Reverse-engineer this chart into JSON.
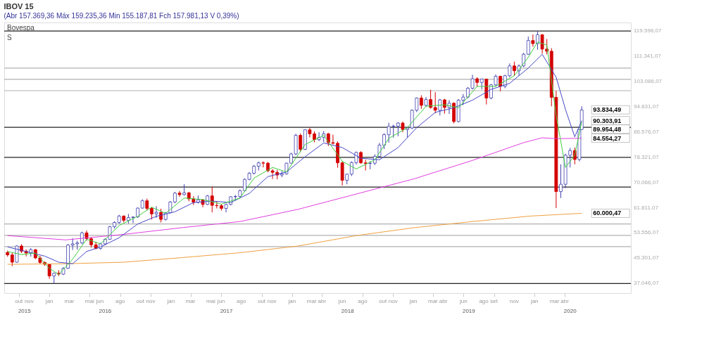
{
  "chart_data": {
    "type": "candlestick",
    "title": "IBOV 15",
    "subtitle": "(Abr 157.369,36 Máx 159.235,36 Min 155.187,81 Fch 157.981,13 V 0,39%)",
    "annotations": [
      "Bovespa",
      "S",
      {
        "text": "93.834,49",
        "x": "2020-06-05",
        "y": 93834.49
      },
      {
        "text": "90.303,91",
        "x": "2020-06-05",
        "y": 90303.91
      },
      {
        "text": "89.954,48",
        "x": "2020-06-05",
        "y": 89954.48
      },
      {
        "text": "84.554,27",
        "x": "2020-06-05",
        "y": 84554.27
      },
      {
        "text": "60.000,47",
        "x": "2020-06-05",
        "y": 60000.47
      }
    ],
    "xlim": [
      "2015-09-01",
      "2020-10-31"
    ],
    "x2lim": [
      "2015-09-01",
      "2020-10-31"
    ],
    "xticks": [
      {
        "value": "2015-10-15",
        "label": "out"
      },
      {
        "value": "2015-11-15",
        "label": "nov"
      },
      {
        "value": "2016-01-15",
        "label": "jan"
      },
      {
        "value": "2016-03-15",
        "label": "mar"
      },
      {
        "value": "2016-05-15",
        "label": "mai"
      },
      {
        "value": "2016-06-15",
        "label": "jun"
      },
      {
        "value": "2016-08-15",
        "label": "ago"
      },
      {
        "value": "2016-10-15",
        "label": "out"
      },
      {
        "value": "2016-11-15",
        "label": "nov"
      },
      {
        "value": "2017-01-15",
        "label": "jan"
      },
      {
        "value": "2017-03-15",
        "label": "mar"
      },
      {
        "value": "2017-05-15",
        "label": "mai"
      },
      {
        "value": "2017-06-15",
        "label": "jun"
      },
      {
        "value": "2017-08-15",
        "label": "ago"
      },
      {
        "value": "2017-10-15",
        "label": "out"
      },
      {
        "value": "2017-11-15",
        "label": "nov"
      },
      {
        "value": "2018-01-15",
        "label": "jan"
      },
      {
        "value": "2018-03-15",
        "label": "mar"
      },
      {
        "value": "2018-04-15",
        "label": "abr"
      },
      {
        "value": "2018-06-15",
        "label": "jun"
      },
      {
        "value": "2018-08-15",
        "label": "ago"
      },
      {
        "value": "2018-10-15",
        "label": "out"
      },
      {
        "value": "2018-11-15",
        "label": "nov"
      },
      {
        "value": "2019-01-15",
        "label": "jan"
      },
      {
        "value": "2019-03-15",
        "label": "mar"
      },
      {
        "value": "2019-04-15",
        "label": "abr"
      },
      {
        "value": "2019-06-15",
        "label": "jun"
      },
      {
        "value": "2019-08-15",
        "label": "ago"
      },
      {
        "value": "2019-09-15",
        "label": "set"
      },
      {
        "value": "2019-11-15",
        "label": "nov"
      },
      {
        "value": "2020-01-15",
        "label": "jan"
      },
      {
        "value": "2020-03-15",
        "label": "mar"
      },
      {
        "value": "2020-04-15",
        "label": "abr"
      }
    ],
    "x2ticks": [
      {
        "value": "2015-11-01",
        "label": "2015"
      },
      {
        "value": "2016-07-01",
        "label": "2016"
      },
      {
        "value": "2017-07-01",
        "label": "2017"
      },
      {
        "value": "2018-07-01",
        "label": "2018"
      },
      {
        "value": "2019-07-01",
        "label": "2019"
      },
      {
        "value": "2020-05-01",
        "label": "2020"
      }
    ],
    "ylim": [
      33900,
      122400
    ],
    "yticks": [
      {
        "value": 119596.07,
        "label": "119.596,07"
      },
      {
        "value": 111341.07,
        "label": "111.341,07"
      },
      {
        "value": 103086.07,
        "label": "103.086,07"
      },
      {
        "value": 94831.07,
        "label": "94.831,07"
      },
      {
        "value": 86576.07,
        "label": "86.576,07"
      },
      {
        "value": 78321.07,
        "label": "78.321,07"
      },
      {
        "value": 70066.07,
        "label": "70.066,07"
      },
      {
        "value": 61811.07,
        "label": "61.811,07"
      },
      {
        "value": 53556.07,
        "label": "53.556,07"
      },
      {
        "value": 45301.07,
        "label": "45.301,07"
      },
      {
        "value": 37046.07,
        "label": "37.046,07"
      }
    ],
    "ref_lines": [
      {
        "axis": "y",
        "value": 119596,
        "color": "#222222"
      },
      {
        "axis": "y",
        "value": 107500,
        "color": "#b0b0b0"
      },
      {
        "axis": "y",
        "value": 103800,
        "color": "#b0b0b0"
      },
      {
        "axis": "y",
        "value": 100100,
        "color": "#b0b0b0"
      },
      {
        "axis": "y",
        "value": 88100,
        "color": "#222222"
      },
      {
        "axis": "y",
        "value": 78300,
        "color": "#222222"
      },
      {
        "axis": "y",
        "value": 68600,
        "color": "#222222"
      },
      {
        "axis": "y",
        "value": 56500,
        "color": "#b0b0b0"
      },
      {
        "axis": "y",
        "value": 52800,
        "color": "#b0b0b0"
      },
      {
        "axis": "y",
        "value": 49100,
        "color": "#b0b0b0"
      },
      {
        "axis": "y",
        "value": 37046,
        "color": "#222222"
      }
    ],
    "series": [
      {
        "type": "line",
        "color": "#f0a040",
        "x": [
          "2015-09-11",
          "2016-03-04",
          "2016-08-26",
          "2017-02-17",
          "2017-08-11",
          "2018-02-02",
          "2018-07-27",
          "2019-01-18",
          "2019-07-12",
          "2020-01-03",
          "2020-06-05"
        ],
        "values": [
          43300,
          43500,
          44000,
          45500,
          47100,
          49300,
          52700,
          55300,
          57300,
          59100,
          60000
        ]
      },
      {
        "type": "line",
        "color": "#e040e0",
        "x": [
          "2015-09-11",
          "2016-03-04",
          "2016-08-26",
          "2017-02-17",
          "2017-08-11",
          "2018-02-02",
          "2018-07-27",
          "2019-01-18",
          "2019-07-12",
          "2019-12-13",
          "2020-02-07",
          "2020-03-20",
          "2020-06-05"
        ],
        "values": [
          52700,
          51300,
          53100,
          55300,
          57300,
          61300,
          66300,
          71300,
          77300,
          83100,
          84700,
          84400,
          84550
        ]
      },
      {
        "type": "line",
        "color": "#4848c8",
        "x": [
          "2015-09-11",
          "2015-11-06",
          "2016-01-01",
          "2016-02-12",
          "2016-03-25",
          "2016-05-06",
          "2016-06-17",
          "2016-08-12",
          "2016-10-07",
          "2016-12-02",
          "2017-01-27",
          "2017-03-24",
          "2017-05-19",
          "2017-07-14",
          "2017-09-08",
          "2017-11-03",
          "2017-12-29",
          "2018-02-23",
          "2018-04-20",
          "2018-06-15",
          "2018-08-10",
          "2018-10-05",
          "2018-11-30",
          "2019-01-25",
          "2019-03-22",
          "2019-05-17",
          "2019-07-12",
          "2019-09-06",
          "2019-11-01",
          "2019-12-27",
          "2020-02-07",
          "2020-03-20",
          "2020-04-17",
          "2020-05-15",
          "2020-06-05"
        ],
        "values": [
          49000,
          47500,
          46000,
          44000,
          43500,
          47500,
          49000,
          52000,
          56500,
          59000,
          60500,
          63500,
          64000,
          63500,
          66500,
          72000,
          73500,
          78500,
          83000,
          81500,
          78000,
          77500,
          81500,
          88000,
          93000,
          94500,
          97000,
          100500,
          102500,
          107500,
          112000,
          104500,
          94000,
          85000,
          90300
        ]
      },
      {
        "type": "line",
        "color": "#40d040",
        "x": [
          "2015-09-11",
          "2015-10-23",
          "2015-12-04",
          "2016-01-15",
          "2016-02-12",
          "2016-03-25",
          "2016-05-06",
          "2016-06-17",
          "2016-08-12",
          "2016-10-07",
          "2016-11-18",
          "2016-12-30",
          "2017-02-24",
          "2017-04-21",
          "2017-06-16",
          "2017-08-11",
          "2017-09-22",
          "2017-11-17",
          "2017-12-29",
          "2018-02-23",
          "2018-04-20",
          "2018-06-15",
          "2018-07-27",
          "2018-09-21",
          "2018-11-02",
          "2018-12-28",
          "2019-02-22",
          "2019-04-19",
          "2019-05-31",
          "2019-07-26",
          "2019-09-20",
          "2019-11-15",
          "2019-12-27",
          "2020-01-24",
          "2020-02-21",
          "2020-03-20",
          "2020-04-17",
          "2020-05-15",
          "2020-06-05"
        ],
        "values": [
          47500,
          46500,
          47000,
          42000,
          40000,
          45000,
          51500,
          50000,
          56000,
          59000,
          62000,
          60000,
          65000,
          64500,
          63000,
          65000,
          71500,
          75000,
          73500,
          82500,
          85500,
          77000,
          74500,
          77500,
          84500,
          88000,
          95000,
          95500,
          94500,
          101500,
          101500,
          105000,
          111000,
          116000,
          115000,
          92000,
          75000,
          79000,
          89950
        ]
      },
      {
        "x": [
          "2015-09-11",
          "2015-09-25",
          "2015-10-09",
          "2015-10-23",
          "2015-11-06",
          "2015-11-20",
          "2015-12-04",
          "2015-12-18",
          "2016-01-01",
          "2016-01-15",
          "2016-01-29",
          "2016-02-12",
          "2016-02-26",
          "2016-03-11",
          "2016-03-25",
          "2016-04-08",
          "2016-04-22",
          "2016-05-06",
          "2016-05-20",
          "2016-06-03",
          "2016-06-17",
          "2016-07-01",
          "2016-07-15",
          "2016-07-29",
          "2016-08-12",
          "2016-08-26",
          "2016-09-09",
          "2016-09-23",
          "2016-10-07",
          "2016-10-21",
          "2016-11-04",
          "2016-11-18",
          "2016-12-02",
          "2016-12-16",
          "2016-12-30",
          "2017-01-13",
          "2017-01-27",
          "2017-02-10",
          "2017-02-24",
          "2017-03-10",
          "2017-03-24",
          "2017-04-07",
          "2017-04-21",
          "2017-05-05",
          "2017-05-19",
          "2017-06-02",
          "2017-06-16",
          "2017-06-30",
          "2017-07-14",
          "2017-07-28",
          "2017-08-11",
          "2017-08-25",
          "2017-09-08",
          "2017-09-22",
          "2017-10-06",
          "2017-10-20",
          "2017-11-03",
          "2017-11-17",
          "2017-12-01",
          "2017-12-15",
          "2017-12-29",
          "2018-01-12",
          "2018-01-26",
          "2018-02-09",
          "2018-02-23",
          "2018-03-09",
          "2018-03-23",
          "2018-04-06",
          "2018-04-20",
          "2018-05-04",
          "2018-05-18",
          "2018-06-01",
          "2018-06-15",
          "2018-06-29",
          "2018-07-13",
          "2018-07-27",
          "2018-08-10",
          "2018-08-24",
          "2018-09-07",
          "2018-09-21",
          "2018-10-05",
          "2018-10-19",
          "2018-11-02",
          "2018-11-16",
          "2018-11-30",
          "2018-12-14",
          "2018-12-28",
          "2019-01-11",
          "2019-01-25",
          "2019-02-08",
          "2019-02-22",
          "2019-03-08",
          "2019-03-22",
          "2019-04-05",
          "2019-04-19",
          "2019-05-03",
          "2019-05-17",
          "2019-05-31",
          "2019-06-14",
          "2019-06-28",
          "2019-07-12",
          "2019-07-26",
          "2019-08-09",
          "2019-08-23",
          "2019-09-06",
          "2019-09-20",
          "2019-10-04",
          "2019-10-18",
          "2019-11-01",
          "2019-11-15",
          "2019-11-29",
          "2019-12-13",
          "2019-12-27",
          "2020-01-10",
          "2020-01-24",
          "2020-02-07",
          "2020-02-21",
          "2020-03-06",
          "2020-03-20",
          "2020-04-03",
          "2020-04-17",
          "2020-05-01",
          "2020-05-15",
          "2020-05-29",
          "2020-06-05"
        ],
        "ohlc": [
          [
            47200,
            47800,
            45800,
            46400
          ],
          [
            46400,
            47000,
            42700,
            44000
          ],
          [
            44000,
            49500,
            43800,
            49300
          ],
          [
            49300,
            49900,
            47000,
            47600
          ],
          [
            47600,
            48200,
            45900,
            47000
          ],
          [
            47000,
            48600,
            45800,
            48100
          ],
          [
            48100,
            48300,
            45000,
            45400
          ],
          [
            45400,
            46100,
            43500,
            43900
          ],
          [
            43900,
            44300,
            42800,
            43300
          ],
          [
            43300,
            43400,
            38600,
            39500
          ],
          [
            39500,
            40600,
            37046,
            40400
          ],
          [
            40400,
            41400,
            39500,
            40100
          ],
          [
            40100,
            42400,
            39800,
            42000
          ],
          [
            42000,
            50000,
            41800,
            49600
          ],
          [
            49600,
            51800,
            48000,
            50000
          ],
          [
            50000,
            51000,
            48100,
            50300
          ],
          [
            50300,
            54000,
            49900,
            53600
          ],
          [
            53600,
            54400,
            51000,
            51700
          ],
          [
            51700,
            52200,
            48800,
            49700
          ],
          [
            49700,
            50700,
            48200,
            48500
          ],
          [
            48500,
            50300,
            48100,
            50000
          ],
          [
            50000,
            51800,
            49600,
            51500
          ],
          [
            51500,
            55900,
            51300,
            55600
          ],
          [
            55600,
            57400,
            55000,
            57000
          ],
          [
            57000,
            59500,
            56600,
            59100
          ],
          [
            59100,
            59300,
            57000,
            57700
          ],
          [
            57700,
            59800,
            56700,
            58600
          ],
          [
            58600,
            59000,
            56800,
            58800
          ],
          [
            58800,
            61900,
            58500,
            61700
          ],
          [
            61700,
            64600,
            61500,
            64100
          ],
          [
            64100,
            64800,
            61000,
            61600
          ],
          [
            61600,
            62000,
            58000,
            59800
          ],
          [
            59800,
            62300,
            58500,
            60300
          ],
          [
            60300,
            61500,
            57000,
            58000
          ],
          [
            58000,
            60400,
            57600,
            60200
          ],
          [
            60200,
            64000,
            60000,
            63700
          ],
          [
            63700,
            67000,
            63300,
            66600
          ],
          [
            66600,
            67300,
            65400,
            66100
          ],
          [
            66100,
            69500,
            65800,
            66700
          ],
          [
            66700,
            67000,
            63900,
            64700
          ],
          [
            64700,
            65600,
            62700,
            63600
          ],
          [
            63600,
            65800,
            63200,
            64400
          ],
          [
            64400,
            64600,
            62000,
            62900
          ],
          [
            62900,
            66000,
            62700,
            65700
          ],
          [
            65700,
            68700,
            60300,
            62600
          ],
          [
            62600,
            64000,
            61600,
            62500
          ],
          [
            62500,
            63000,
            60900,
            61600
          ],
          [
            61600,
            63200,
            60300,
            62900
          ],
          [
            62900,
            65600,
            62600,
            65400
          ],
          [
            65400,
            66000,
            64200,
            65500
          ],
          [
            65500,
            67800,
            65000,
            67400
          ],
          [
            67400,
            71400,
            67100,
            71100
          ],
          [
            71100,
            73500,
            70800,
            73100
          ],
          [
            73100,
            75800,
            72700,
            75400
          ],
          [
            75400,
            76900,
            74000,
            76500
          ],
          [
            76500,
            77000,
            75000,
            76400
          ],
          [
            76400,
            76800,
            73400,
            73900
          ],
          [
            73900,
            74500,
            71200,
            73400
          ],
          [
            73400,
            74200,
            71100,
            72500
          ],
          [
            72500,
            73800,
            71800,
            72900
          ],
          [
            72900,
            76600,
            72600,
            76400
          ],
          [
            76400,
            79800,
            76200,
            79400
          ],
          [
            79400,
            86000,
            79000,
            85500
          ],
          [
            85500,
            86100,
            80000,
            80900
          ],
          [
            80900,
            87500,
            80700,
            87300
          ],
          [
            87300,
            88000,
            84800,
            86000
          ],
          [
            86000,
            86800,
            83200,
            84100
          ],
          [
            84100,
            86500,
            83600,
            84800
          ],
          [
            84800,
            86900,
            83300,
            86000
          ],
          [
            86000,
            86300,
            82000,
            83100
          ],
          [
            83100,
            85700,
            82500,
            82900
          ],
          [
            82900,
            83500,
            74900,
            76500
          ],
          [
            76500,
            77000,
            69100,
            70800
          ],
          [
            70800,
            73000,
            69500,
            72800
          ],
          [
            72800,
            77000,
            72200,
            76600
          ],
          [
            76600,
            80200,
            76000,
            79900
          ],
          [
            79900,
            80300,
            76200,
            76500
          ],
          [
            76500,
            77500,
            74000,
            76300
          ],
          [
            76300,
            77000,
            74400,
            76400
          ],
          [
            76400,
            79300,
            75800,
            78600
          ],
          [
            78600,
            83000,
            78000,
            82300
          ],
          [
            82300,
            86200,
            81000,
            85700
          ],
          [
            85700,
            89600,
            83100,
            88400
          ],
          [
            88400,
            89000,
            84700,
            88500
          ],
          [
            88500,
            89800,
            85200,
            89500
          ],
          [
            89500,
            90000,
            86500,
            87400
          ],
          [
            87400,
            88000,
            84800,
            87900
          ],
          [
            87900,
            94000,
            87500,
            93700
          ],
          [
            93700,
            97900,
            93100,
            97700
          ],
          [
            97700,
            98600,
            94200,
            95300
          ],
          [
            95300,
            98000,
            94800,
            97200
          ],
          [
            97200,
            100400,
            94200,
            94600
          ],
          [
            94600,
            99600,
            92700,
            93700
          ],
          [
            93700,
            97400,
            92000,
            97100
          ],
          [
            97100,
            97400,
            92600,
            94600
          ],
          [
            94600,
            97000,
            92500,
            96000
          ],
          [
            96000,
            96300,
            89400,
            90000
          ],
          [
            90000,
            97300,
            89700,
            97000
          ],
          [
            97000,
            99000,
            95400,
            98000
          ],
          [
            98000,
            101300,
            97600,
            100900
          ],
          [
            100900,
            105300,
            100500,
            104000
          ],
          [
            104000,
            104500,
            101400,
            102800
          ],
          [
            102800,
            104100,
            100500,
            103900
          ],
          [
            103900,
            104000,
            95600,
            97700
          ],
          [
            97700,
            102300,
            97300,
            102000
          ],
          [
            102000,
            105400,
            101500,
            104800
          ],
          [
            104800,
            105000,
            99900,
            101500
          ],
          [
            101500,
            105300,
            100900,
            105000
          ],
          [
            105000,
            109000,
            104500,
            108200
          ],
          [
            108200,
            109600,
            105000,
            106600
          ],
          [
            106600,
            108700,
            105000,
            108200
          ],
          [
            108200,
            112500,
            107800,
            112000
          ],
          [
            112000,
            117800,
            111800,
            116500
          ],
          [
            116500,
            118500,
            114500,
            115500
          ],
          [
            115500,
            119596,
            113500,
            118400
          ],
          [
            118400,
            118600,
            112200,
            113700
          ],
          [
            113700,
            117000,
            112000,
            113000
          ],
          [
            113000,
            114000,
            95000,
            97900
          ],
          [
            97900,
            100000,
            61700,
            67100
          ],
          [
            67100,
            76000,
            65000,
            69500
          ],
          [
            69500,
            79500,
            68200,
            79000
          ],
          [
            79000,
            81400,
            75000,
            80500
          ],
          [
            80500,
            81500,
            76000,
            77600
          ],
          [
            77600,
            87600,
            77000,
            87400
          ],
          [
            87400,
            95000,
            87300,
            93800
          ]
        ],
        "colors": [
          "#d40000",
          "#d40000",
          "#4040b0",
          "#d40000",
          "#d40000",
          "#4040b0",
          "#d40000",
          "#d40000",
          "#d40000",
          "#d40000",
          "#4040b0",
          "#d40000",
          "#4040b0",
          "#4040b0",
          "#4040b0",
          "#4040b0",
          "#4040b0",
          "#d40000",
          "#d40000",
          "#d40000",
          "#4040b0",
          "#4040b0",
          "#4040b0",
          "#4040b0",
          "#4040b0",
          "#d40000",
          "#4040b0",
          "#4040b0",
          "#4040b0",
          "#4040b0",
          "#d40000",
          "#d40000",
          "#4040b0",
          "#d40000",
          "#4040b0",
          "#4040b0",
          "#4040b0",
          "#d40000",
          "#4040b0",
          "#d40000",
          "#d40000",
          "#4040b0",
          "#d40000",
          "#4040b0",
          "#d40000",
          "#d40000",
          "#d40000",
          "#4040b0",
          "#4040b0",
          "#4040b0",
          "#4040b0",
          "#4040b0",
          "#4040b0",
          "#4040b0",
          "#4040b0",
          "#d40000",
          "#d40000",
          "#d40000",
          "#d40000",
          "#4040b0",
          "#4040b0",
          "#4040b0",
          "#4040b0",
          "#d40000",
          "#4040b0",
          "#d40000",
          "#d40000",
          "#4040b0",
          "#4040b0",
          "#d40000",
          "#d40000",
          "#d40000",
          "#d40000",
          "#4040b0",
          "#4040b0",
          "#4040b0",
          "#d40000",
          "#d40000",
          "#4040b0",
          "#4040b0",
          "#4040b0",
          "#4040b0",
          "#4040b0",
          "#4040b0",
          "#4040b0",
          "#d40000",
          "#4040b0",
          "#4040b0",
          "#4040b0",
          "#d40000",
          "#4040b0",
          "#d40000",
          "#d40000",
          "#4040b0",
          "#d40000",
          "#4040b0",
          "#d40000",
          "#4040b0",
          "#4040b0",
          "#4040b0",
          "#4040b0",
          "#d40000",
          "#4040b0",
          "#d40000",
          "#4040b0",
          "#4040b0",
          "#d40000",
          "#4040b0",
          "#4040b0",
          "#d40000",
          "#4040b0",
          "#4040b0",
          "#4040b0",
          "#d40000",
          "#4040b0",
          "#d40000",
          "#d40000",
          "#d40000",
          "#d40000",
          "#4040b0",
          "#4040b0",
          "#4040b0",
          "#d40000",
          "#4040b0",
          "#4040b0"
        ]
      }
    ]
  }
}
